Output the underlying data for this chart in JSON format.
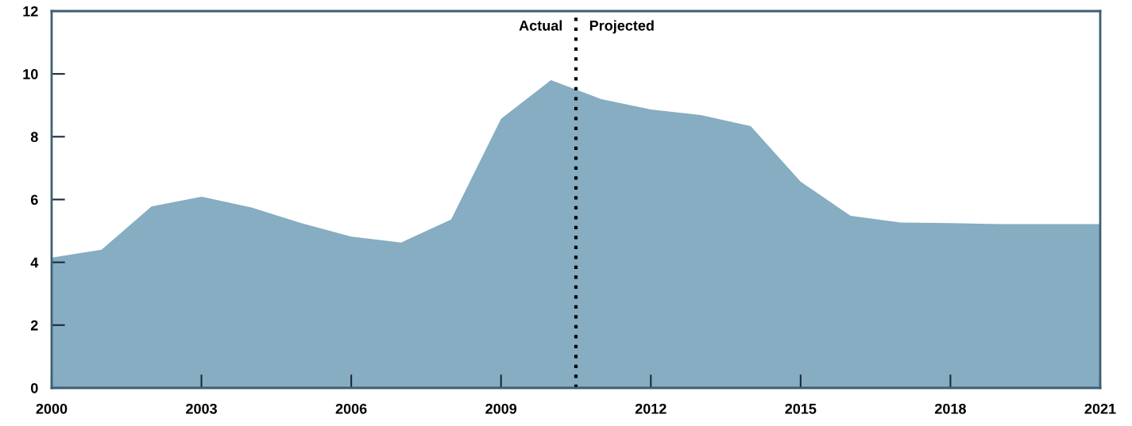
{
  "chart_data": {
    "type": "area",
    "x": [
      2000,
      2001,
      2002,
      2003,
      2004,
      2005,
      2006,
      2007,
      2008,
      2009,
      2010,
      2011,
      2012,
      2013,
      2014,
      2015,
      2016,
      2017,
      2018,
      2019,
      2020,
      2021
    ],
    "series": [
      {
        "color": "#86adc1",
        "values": [
          4.15,
          4.4,
          5.78,
          6.09,
          5.75,
          5.25,
          4.82,
          4.63,
          5.36,
          8.57,
          9.8,
          9.2,
          8.87,
          8.69,
          8.34,
          6.57,
          5.48,
          5.27,
          5.25,
          5.22,
          5.22,
          5.22
        ]
      }
    ],
    "xlim": [
      2000,
      2021
    ],
    "xticks": [
      2000,
      2003,
      2006,
      2009,
      2012,
      2015,
      2018,
      2021
    ],
    "ylim": [
      0,
      12
    ],
    "yticks": [
      0,
      2,
      4,
      6,
      8,
      10,
      12
    ],
    "ref_lines": [
      {
        "axis": "x",
        "value": 2010.5,
        "color": "#000000",
        "line_style": "dotted"
      }
    ],
    "annotations": [
      {
        "text": "Actual",
        "x": 2010.5,
        "y": 11.5
      },
      {
        "text": "Projected",
        "x": 2010.5,
        "y": 11.5
      }
    ],
    "grid": false,
    "legend": false
  }
}
